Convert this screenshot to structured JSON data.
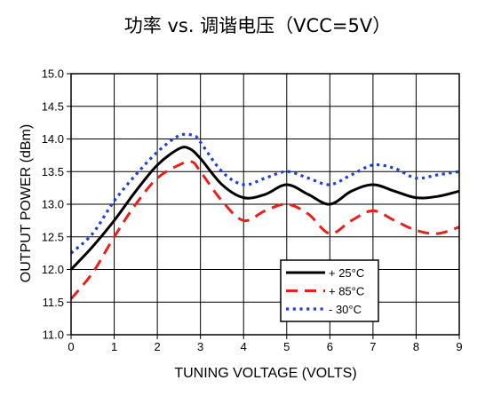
{
  "chart_data": {
    "type": "line",
    "title": "功率  vs.  调谐电压（VCC=5V）",
    "xlabel": "TUNING VOLTAGE (VOLTS)",
    "ylabel": "OUTPUT POWER (dBm)",
    "xlim": [
      0,
      9
    ],
    "ylim": [
      11.0,
      15.0
    ],
    "xticks": [
      "0",
      "1",
      "2",
      "3",
      "4",
      "5",
      "6",
      "7",
      "8",
      "9"
    ],
    "yticks": [
      "11.0",
      "11.5",
      "12.0",
      "12.5",
      "13.0",
      "13.5",
      "14.0",
      "14.5",
      "15.0"
    ],
    "grid": true,
    "legend_position": "bottom-right",
    "series": [
      {
        "name": "+ 25°C",
        "color": "#000000",
        "style": "solid",
        "x": [
          0,
          0.5,
          1,
          1.5,
          2,
          2.5,
          2.75,
          3,
          3.5,
          4,
          4.5,
          5,
          5.5,
          6,
          6.5,
          7,
          7.5,
          8,
          8.5,
          9
        ],
        "y": [
          12.0,
          12.35,
          12.75,
          13.2,
          13.6,
          13.85,
          13.85,
          13.7,
          13.3,
          13.1,
          13.15,
          13.3,
          13.15,
          13.0,
          13.2,
          13.3,
          13.2,
          13.1,
          13.12,
          13.2
        ]
      },
      {
        "name": "+ 85°C",
        "color": "#e8201c",
        "style": "dashed",
        "x": [
          0,
          0.5,
          1,
          1.5,
          2,
          2.5,
          2.8,
          3,
          3.5,
          4,
          4.5,
          5,
          5.5,
          6,
          6.5,
          7,
          7.5,
          8,
          8.5,
          9
        ],
        "y": [
          11.55,
          11.95,
          12.5,
          13.0,
          13.4,
          13.6,
          13.65,
          13.5,
          13.05,
          12.75,
          12.9,
          13.0,
          12.85,
          12.55,
          12.75,
          12.9,
          12.75,
          12.6,
          12.55,
          12.65
        ]
      },
      {
        "name": "- 30°C",
        "color": "#1f3fd9",
        "style": "dotted",
        "x": [
          0,
          0.5,
          1,
          1.5,
          2,
          2.5,
          2.85,
          3,
          3.5,
          4,
          4.5,
          5,
          5.5,
          6,
          6.5,
          7,
          7.5,
          8,
          8.5,
          9
        ],
        "y": [
          12.25,
          12.55,
          13.05,
          13.45,
          13.8,
          14.05,
          14.05,
          13.95,
          13.5,
          13.3,
          13.4,
          13.5,
          13.4,
          13.3,
          13.45,
          13.6,
          13.55,
          13.4,
          13.45,
          13.5
        ]
      }
    ]
  }
}
